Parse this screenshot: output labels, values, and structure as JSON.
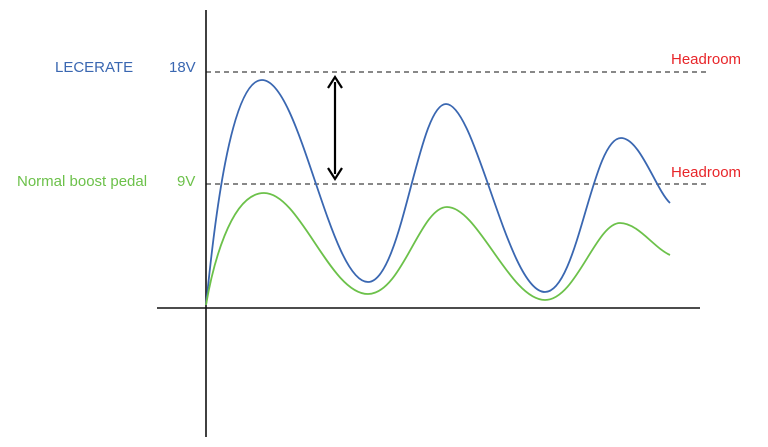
{
  "colors": {
    "lecerate": "#3a67b1",
    "normal": "#6cc14a",
    "headroom": "#e8262a",
    "axis": "#111111"
  },
  "lecerate": {
    "name": "LECERATE",
    "voltage": "18V"
  },
  "normal": {
    "name": "Normal boost pedal",
    "voltage": "9V"
  },
  "headroom_label": "Headroom",
  "icons": {
    "headroom_arrow": "double-headed-vertical-arrow"
  }
}
